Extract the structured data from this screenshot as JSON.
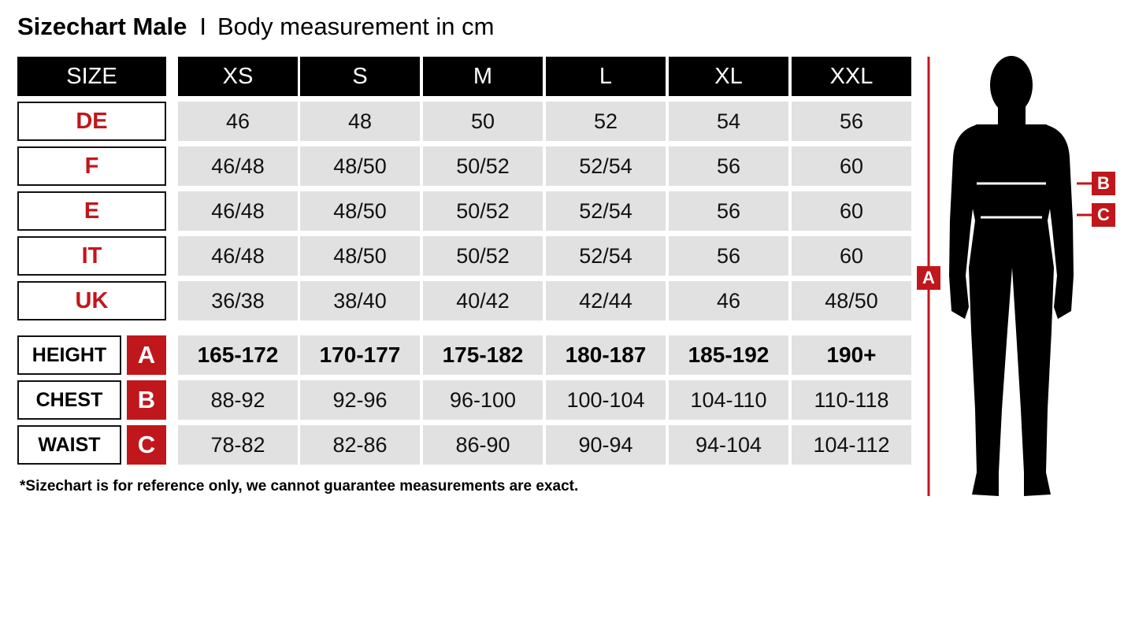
{
  "title": {
    "main": "Sizechart Male",
    "separator": "I",
    "subtitle": "Body measurement in cm"
  },
  "colors": {
    "accent": "#c0171c",
    "header_bg": "#000000",
    "cell_bg": "#e1e1e1"
  },
  "table": {
    "corner_label": "SIZE",
    "sizes": [
      "XS",
      "S",
      "M",
      "L",
      "XL",
      "XXL"
    ],
    "conversion_rows": [
      {
        "code": "DE",
        "values": [
          "46",
          "48",
          "50",
          "52",
          "54",
          "56"
        ]
      },
      {
        "code": "F",
        "values": [
          "46/48",
          "48/50",
          "50/52",
          "52/54",
          "56",
          "60"
        ]
      },
      {
        "code": "E",
        "values": [
          "46/48",
          "48/50",
          "50/52",
          "52/54",
          "56",
          "60"
        ]
      },
      {
        "code": "IT",
        "values": [
          "46/48",
          "48/50",
          "50/52",
          "52/54",
          "56",
          "60"
        ]
      },
      {
        "code": "UK",
        "values": [
          "36/38",
          "38/40",
          "40/42",
          "42/44",
          "46",
          "48/50"
        ]
      }
    ],
    "measurement_rows": [
      {
        "label": "HEIGHT",
        "marker": "A",
        "values": [
          "165-172",
          "170-177",
          "175-182",
          "180-187",
          "185-192",
          "190+"
        ],
        "bold": true
      },
      {
        "label": "CHEST",
        "marker": "B",
        "values": [
          "88-92",
          "92-96",
          "96-100",
          "100-104",
          "104-110",
          "110-118"
        ]
      },
      {
        "label": "WAIST",
        "marker": "C",
        "values": [
          "78-82",
          "82-86",
          "86-90",
          "90-94",
          "94-104",
          "104-112"
        ]
      }
    ]
  },
  "figure": {
    "icon": "male-body-silhouette-icon",
    "markers": {
      "height": "A",
      "chest": "B",
      "waist": "C"
    }
  },
  "note": "*Sizechart is for reference only, we cannot guarantee measurements are exact."
}
